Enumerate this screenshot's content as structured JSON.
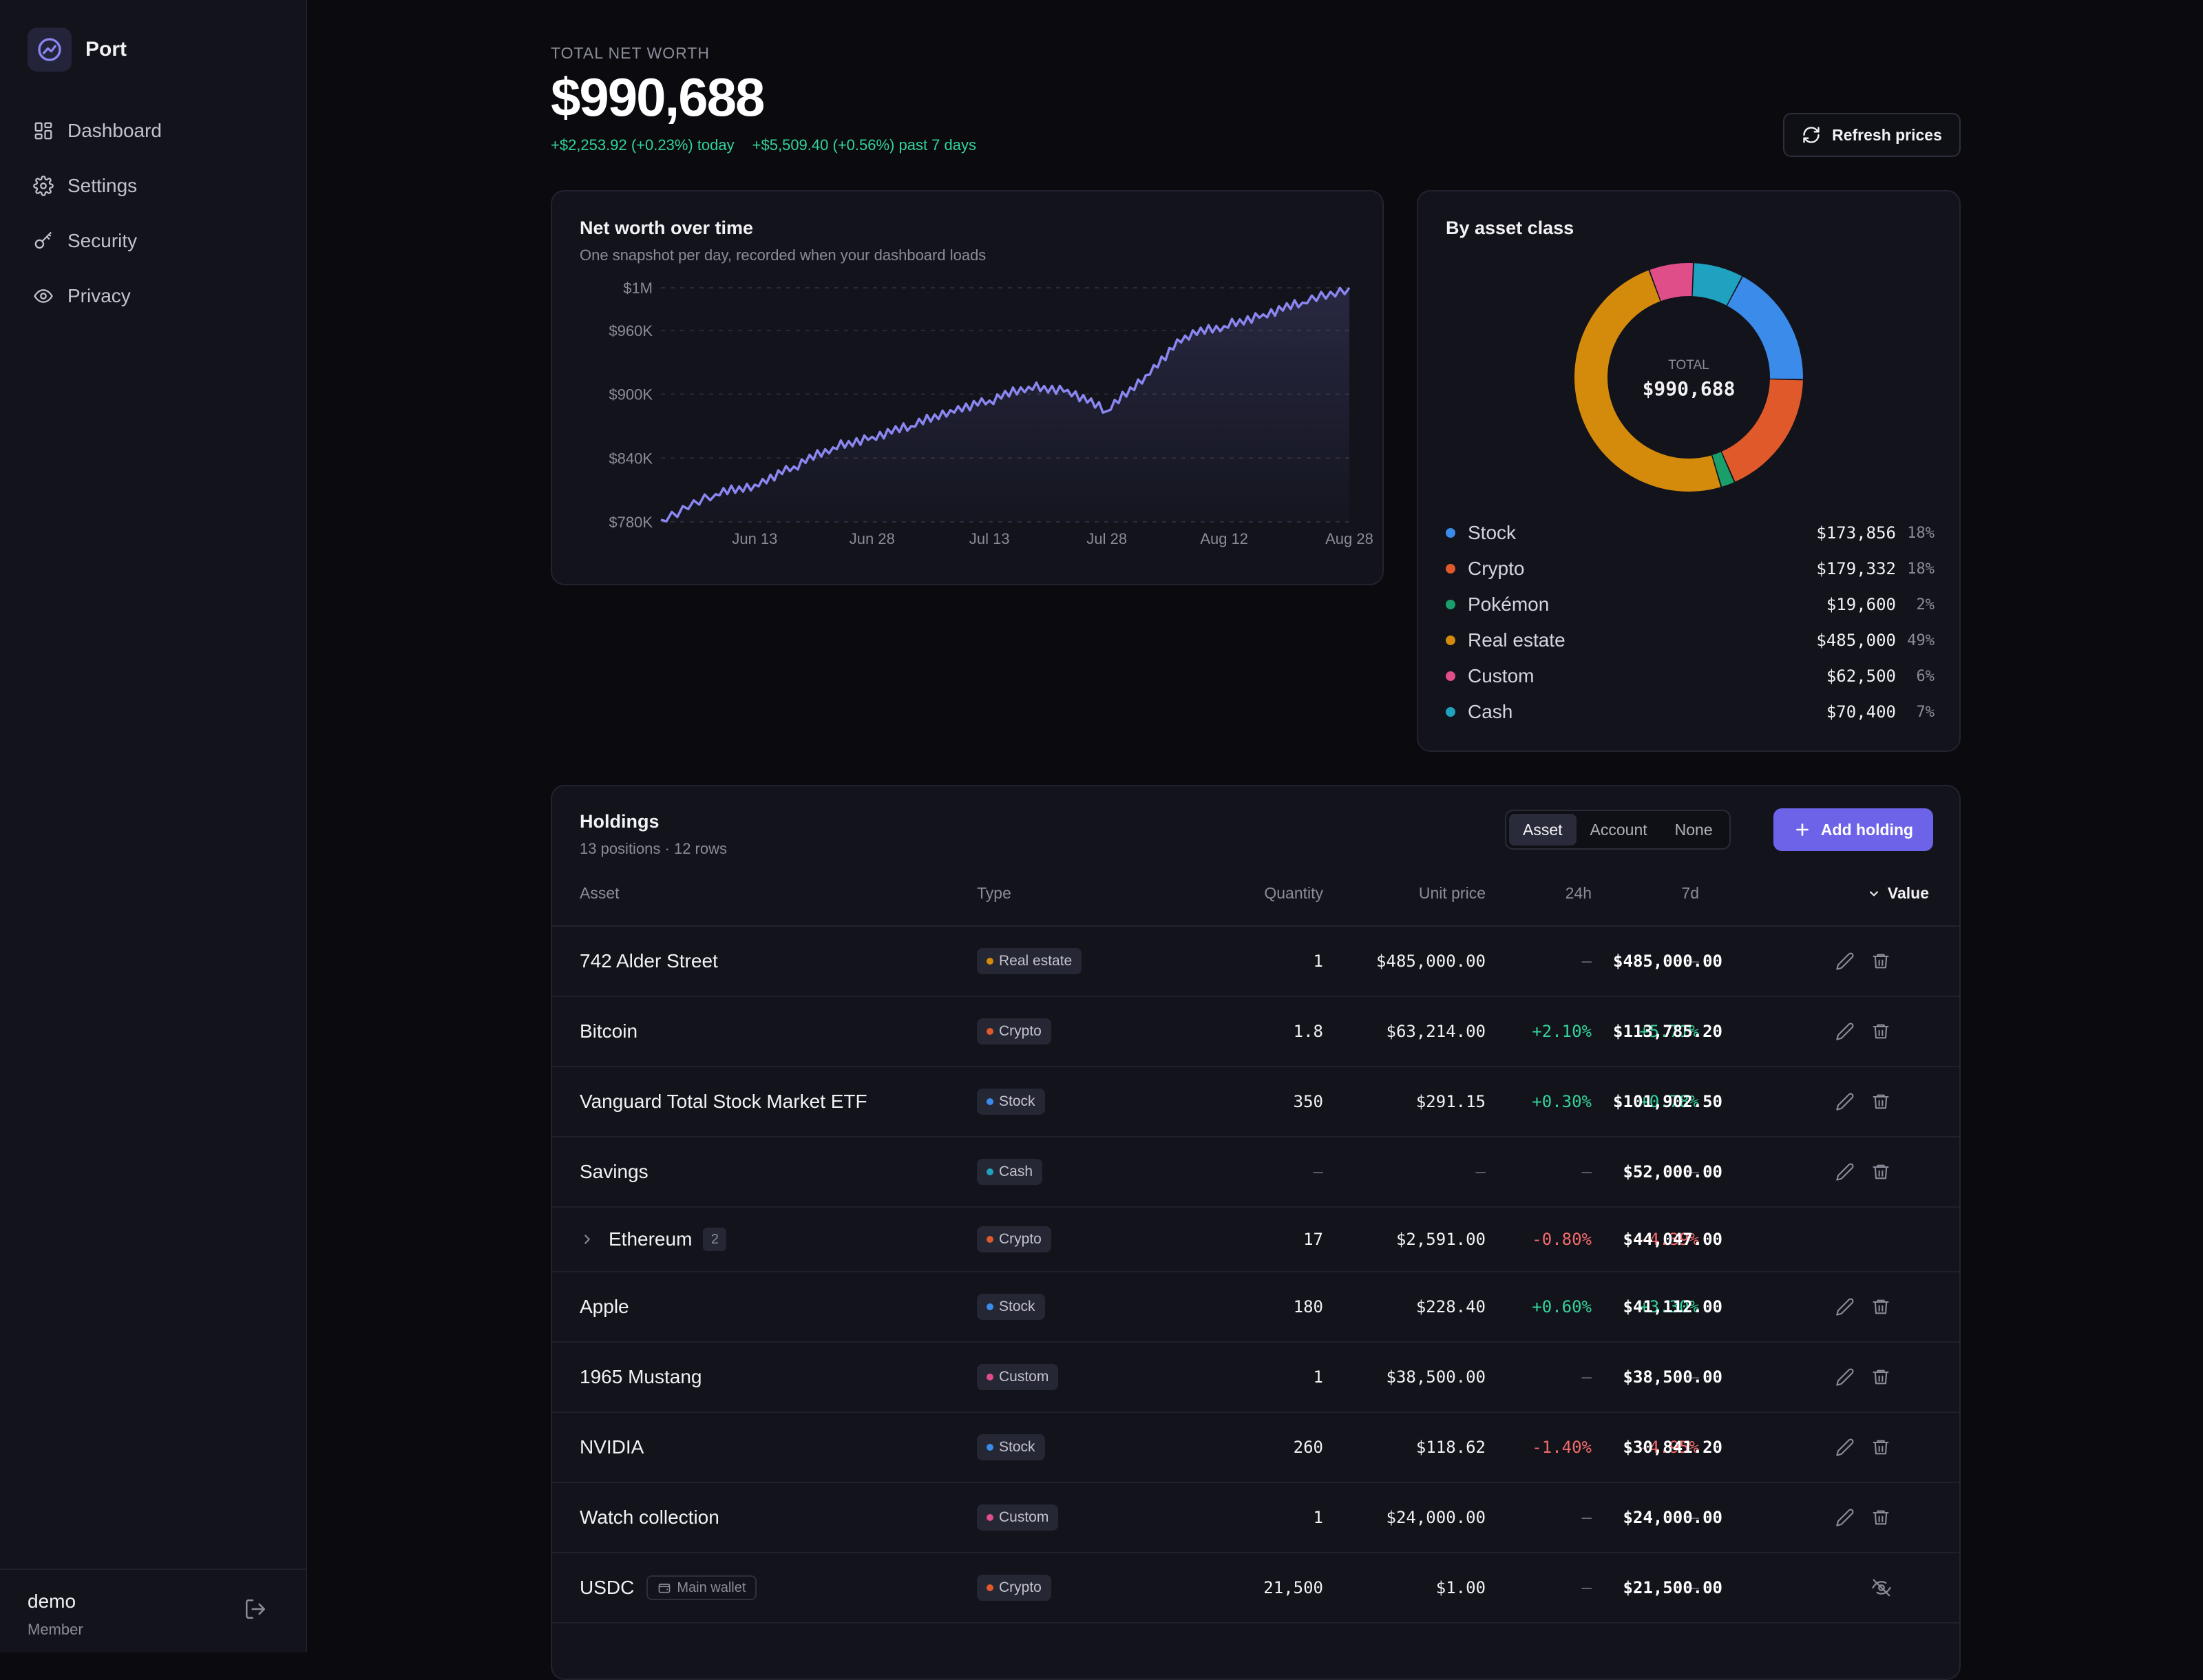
{
  "app": {
    "name": "Port"
  },
  "sidebar": {
    "items": [
      {
        "label": "Dashboard",
        "icon": "dashboard-icon"
      },
      {
        "label": "Settings",
        "icon": "gear-icon"
      },
      {
        "label": "Security",
        "icon": "key-icon"
      },
      {
        "label": "Privacy",
        "icon": "eye-icon"
      }
    ],
    "user": {
      "name": "demo",
      "role": "Member"
    }
  },
  "header": {
    "label": "TOTAL NET WORTH",
    "value": "$990,688",
    "change_today": "+$2,253.92 (+0.23%) today",
    "change_week": "+$5,509.40 (+0.56%) past 7 days",
    "refresh_label": "Refresh prices"
  },
  "networth_chart": {
    "title": "Net worth over time",
    "subtitle": "One snapshot per day, recorded when your dashboard loads"
  },
  "asset_class": {
    "title": "By asset class",
    "total_label": "TOTAL",
    "total_value": "$990,688",
    "items": [
      {
        "name": "Stock",
        "value": "$173,856",
        "pct": "18%",
        "color": "#3b8beb"
      },
      {
        "name": "Crypto",
        "value": "$179,332",
        "pct": "18%",
        "color": "#e0592b"
      },
      {
        "name": "Pokémon",
        "value": "$19,600",
        "pct": "2%",
        "color": "#1a9e6a"
      },
      {
        "name": "Real estate",
        "value": "$485,000",
        "pct": "49%",
        "color": "#d48a0b"
      },
      {
        "name": "Custom",
        "value": "$62,500",
        "pct": "6%",
        "color": "#e04e89"
      },
      {
        "name": "Cash",
        "value": "$70,400",
        "pct": "7%",
        "color": "#1fa2bf"
      }
    ]
  },
  "chart_data": [
    {
      "type": "area",
      "title": "Net worth over time",
      "subtitle": "One snapshot per day, recorded when your dashboard loads",
      "x_ticks": [
        "Jun 13",
        "Jun 28",
        "Jul 13",
        "Jul 28",
        "Aug 12",
        "Aug 28"
      ],
      "y_ticks": [
        "$780K",
        "$840K",
        "$900K",
        "$960K",
        "$1M"
      ],
      "ylim": [
        780000,
        1020000
      ],
      "grid": true,
      "color": "#8b86f0",
      "x": [
        "Jun 1",
        "Jun 8",
        "Jun 13",
        "Jun 18",
        "Jun 23",
        "Jun 28",
        "Jul 3",
        "Jul 8",
        "Jul 13",
        "Jul 18",
        "Jul 23",
        "Jul 28",
        "Aug 2",
        "Aug 7",
        "Aug 12",
        "Aug 17",
        "Aug 22",
        "Aug 28"
      ],
      "y": [
        782000,
        806000,
        815000,
        832000,
        850000,
        860000,
        870000,
        885000,
        894000,
        907000,
        904000,
        884000,
        918000,
        955000,
        964000,
        975000,
        986000,
        1000000
      ]
    },
    {
      "type": "pie",
      "title": "By asset class",
      "categories": [
        "Stock",
        "Crypto",
        "Pokémon",
        "Real estate",
        "Custom",
        "Cash"
      ],
      "values": [
        173856,
        179332,
        19600,
        485000,
        62500,
        70400
      ]
    }
  ],
  "holdings": {
    "title": "Holdings",
    "subtitle": "13 positions · 12 rows",
    "group_options": [
      "Asset",
      "Account",
      "None"
    ],
    "group_selected": "Asset",
    "add_label": "Add holding",
    "columns": [
      "Asset",
      "Type",
      "Quantity",
      "Unit price",
      "24h",
      "7d",
      "Value"
    ],
    "rows": [
      {
        "asset": "742 Alder Street",
        "type": "Real estate",
        "type_color": "#d48a0b",
        "qty": "1",
        "price": "$485,000.00",
        "h24": "–",
        "d7": "–",
        "value": "$485,000.00",
        "h24_dir": "none",
        "d7_dir": "none",
        "actions": "edit"
      },
      {
        "asset": "Bitcoin",
        "type": "Crypto",
        "type_color": "#e0592b",
        "qty": "1.8",
        "price": "$63,214.00",
        "h24": "+2.10%",
        "d7": "+5.71%",
        "value": "$113,785.20",
        "h24_dir": "pos",
        "d7_dir": "pos",
        "actions": "edit"
      },
      {
        "asset": "Vanguard Total Stock Market ETF",
        "type": "Stock",
        "type_color": "#3b8beb",
        "qty": "350",
        "price": "$291.15",
        "h24": "+0.30%",
        "d7": "+0.78%",
        "value": "$101,902.50",
        "h24_dir": "pos",
        "d7_dir": "pos",
        "actions": "edit"
      },
      {
        "asset": "Savings",
        "type": "Cash",
        "type_color": "#1fa2bf",
        "qty": "–",
        "price": "–",
        "h24": "–",
        "d7": "–",
        "value": "$52,000.00",
        "h24_dir": "none",
        "d7_dir": "none",
        "actions": "edit"
      },
      {
        "asset": "Ethereum",
        "count": "2",
        "type": "Crypto",
        "type_color": "#e0592b",
        "qty": "17",
        "price": "$2,591.00",
        "h24": "-0.80%",
        "d7": "-4.39%",
        "value": "$44,047.00",
        "h24_dir": "neg",
        "d7_dir": "neg",
        "actions": "none",
        "expandable": true
      },
      {
        "asset": "Apple",
        "type": "Stock",
        "type_color": "#3b8beb",
        "qty": "180",
        "price": "$228.40",
        "h24": "+0.60%",
        "d7": "+3.30%",
        "value": "$41,112.00",
        "h24_dir": "pos",
        "d7_dir": "pos",
        "actions": "edit"
      },
      {
        "asset": "1965 Mustang",
        "type": "Custom",
        "type_color": "#e04e89",
        "qty": "1",
        "price": "$38,500.00",
        "h24": "–",
        "d7": "–",
        "value": "$38,500.00",
        "h24_dir": "none",
        "d7_dir": "none",
        "actions": "edit"
      },
      {
        "asset": "NVIDIA",
        "type": "Stock",
        "type_color": "#3b8beb",
        "qty": "260",
        "price": "$118.62",
        "h24": "-1.40%",
        "d7": "-4.95%",
        "value": "$30,841.20",
        "h24_dir": "neg",
        "d7_dir": "neg",
        "actions": "edit"
      },
      {
        "asset": "Watch collection",
        "type": "Custom",
        "type_color": "#e04e89",
        "qty": "1",
        "price": "$24,000.00",
        "h24": "–",
        "d7": "–",
        "value": "$24,000.00",
        "h24_dir": "none",
        "d7_dir": "none",
        "actions": "edit"
      },
      {
        "asset": "USDC",
        "tag": "Main wallet",
        "type": "Crypto",
        "type_color": "#e0592b",
        "qty": "21,500",
        "price": "$1.00",
        "h24": "–",
        "d7": "–",
        "value": "$21,500.00",
        "h24_dir": "none",
        "d7_dir": "none",
        "actions": "hidden"
      }
    ]
  }
}
